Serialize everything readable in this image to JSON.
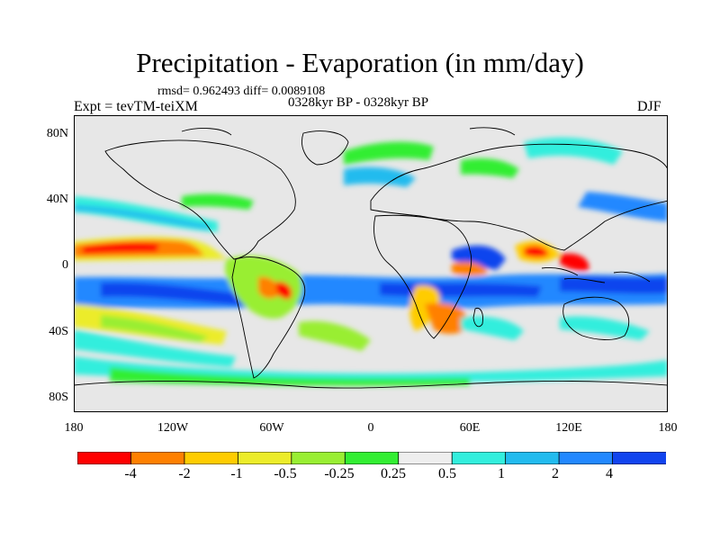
{
  "title": "Precipitation - Evaporation (in mm/day)",
  "stats_line": "rmsd= 0.962493 diff= 0.0089108",
  "period_line": "0328kyr BP - 0328kyr BP",
  "experiment": "Expt = tevTM-teiXM",
  "season": "DJF",
  "y_ticks": [
    "80N",
    "40N",
    "0",
    "40S",
    "80S"
  ],
  "x_ticks": [
    "180",
    "120W",
    "60W",
    "0",
    "60E",
    "120E",
    "180"
  ],
  "colorbar": {
    "labels": [
      "-4",
      "-2",
      "-1",
      "-0.5",
      "-0.25",
      "0.25",
      "0.5",
      "1",
      "2",
      "4"
    ],
    "colors": [
      "#ff0000",
      "#ff8000",
      "#ffcc00",
      "#ecec2a",
      "#99ee33",
      "#33ee33",
      "#eeeeee",
      "#33eedd",
      "#22bbee",
      "#2288ff",
      "#1144ee",
      "#2222cc",
      "#8822ee"
    ]
  },
  "map_colors": {
    "background": "#e7e7e7",
    "neutral": "#eeeeee"
  }
}
